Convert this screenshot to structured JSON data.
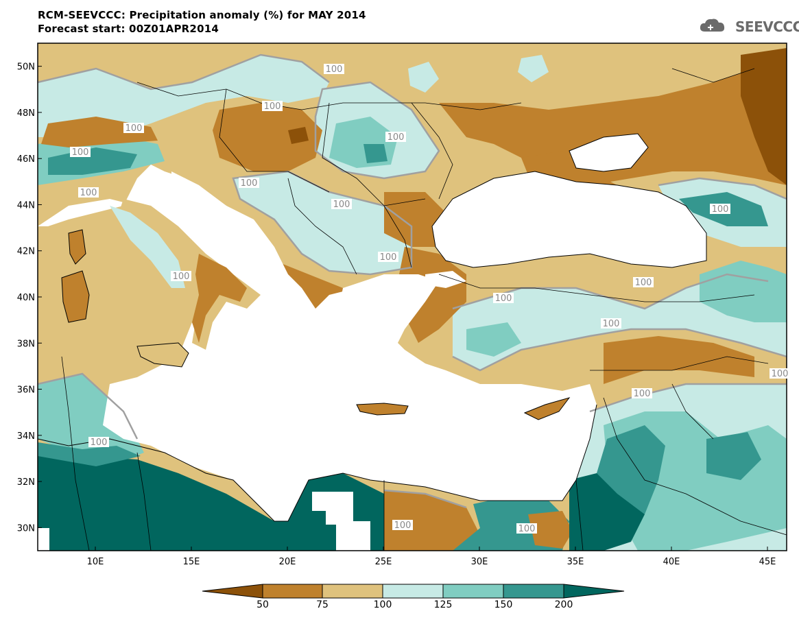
{
  "header": {
    "title": "RCM-SEEVCCC: Precipitation anomaly (%) for MAY 2014",
    "subtitle": "Forecast start: 00Z01APR2014"
  },
  "logo": {
    "text": "SEEVCCC",
    "icon": "cloud-icon"
  },
  "map": {
    "region": "Mediterranean / Black Sea",
    "lon_range": [
      7,
      46
    ],
    "lat_range": [
      29,
      51
    ],
    "lat_labels": [
      "50N",
      "48N",
      "46N",
      "44N",
      "42N",
      "40N",
      "38N",
      "36N",
      "34N",
      "32N",
      "30N"
    ],
    "lon_labels": [
      "10E",
      "15E",
      "20E",
      "25E",
      "30E",
      "35E",
      "40E",
      "45E"
    ],
    "contour_label": "100",
    "colors": {
      "below50": "#8c5109",
      "c50_75": "#bf812d",
      "c75_100": "#dfc27d",
      "c100_125": "#c7eae5",
      "c125_150": "#80cdc1",
      "c150_200": "#35978f",
      "above200": "#01665e",
      "sea": "#ffffff",
      "contour": "#a0a0a0"
    }
  },
  "colorbar": {
    "labels": [
      "50",
      "75",
      "100",
      "125",
      "150",
      "200"
    ]
  }
}
